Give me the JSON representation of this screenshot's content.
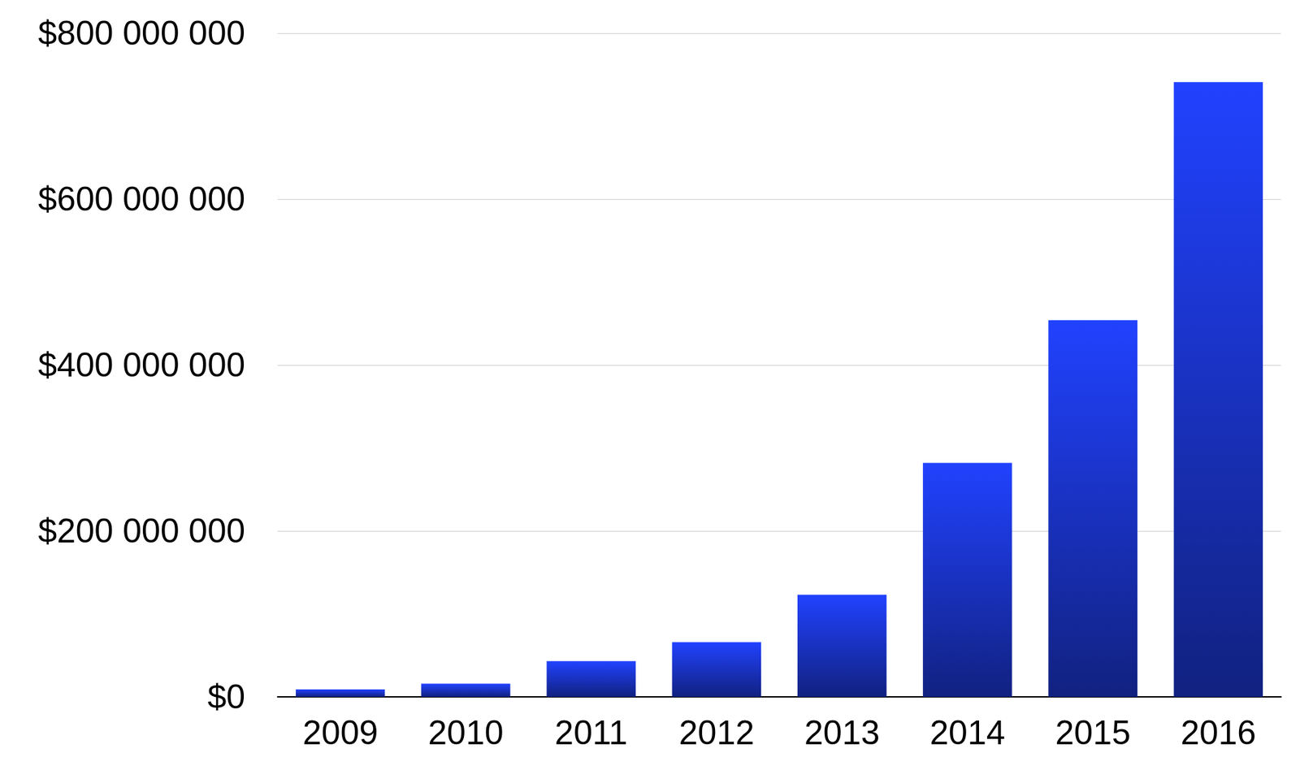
{
  "chart_data": {
    "type": "bar",
    "categories": [
      "2009",
      "2010",
      "2011",
      "2012",
      "2013",
      "2014",
      "2015",
      "2016"
    ],
    "values": [
      9000000,
      16000000,
      43000000,
      66000000,
      123000000,
      282000000,
      454000000,
      741000000
    ],
    "color": "#2142ff",
    "ylim": [
      0,
      800000000
    ],
    "yticks": [
      {
        "value": 0,
        "label": "$0"
      },
      {
        "value": 200000000,
        "label": "$200 000 000"
      },
      {
        "value": 400000000,
        "label": "$400 000 000"
      },
      {
        "value": 600000000,
        "label": "$600 000 000"
      },
      {
        "value": 800000000,
        "label": "$800 000 000"
      }
    ],
    "grid": true
  }
}
